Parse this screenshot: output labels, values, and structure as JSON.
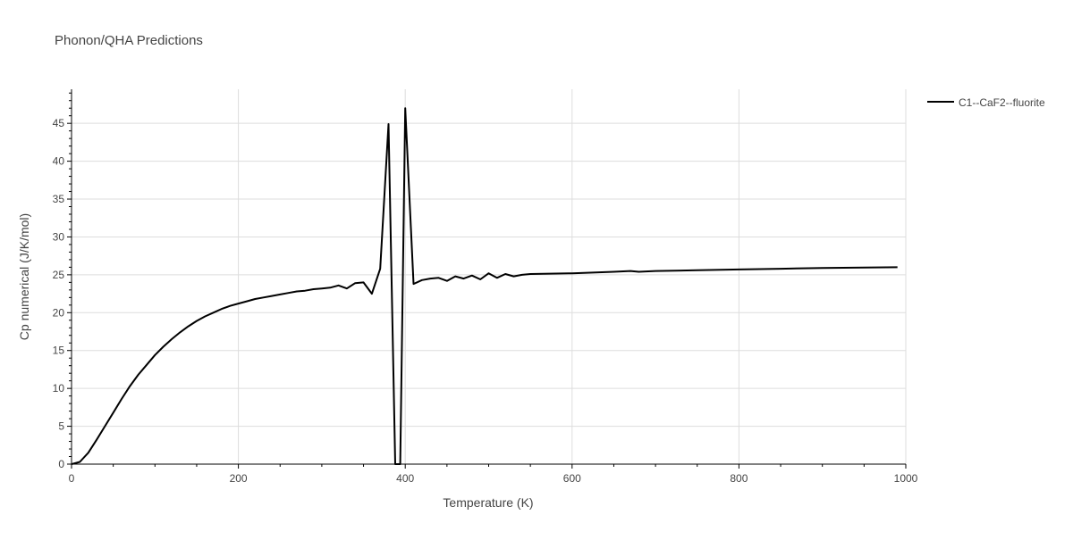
{
  "chart_data": {
    "type": "line",
    "title": "Phonon/QHA Predictions",
    "xlabel": "Temperature (K)",
    "ylabel": "Cp numerical (J/K/mol)",
    "xlim": [
      0,
      1000
    ],
    "ylim": [
      0,
      49.5
    ],
    "x_ticks": [
      0,
      200,
      400,
      600,
      800,
      1000
    ],
    "y_ticks": [
      0,
      5,
      10,
      15,
      20,
      25,
      30,
      35,
      40,
      45
    ],
    "grid": true,
    "legend_position": "top-right",
    "series": [
      {
        "name": "C1--CaF2--fluorite",
        "color": "#000000",
        "x": [
          0,
          10,
          20,
          30,
          40,
          50,
          60,
          70,
          80,
          90,
          100,
          110,
          120,
          130,
          140,
          150,
          160,
          170,
          180,
          190,
          200,
          210,
          220,
          230,
          240,
          250,
          260,
          270,
          280,
          290,
          300,
          310,
          320,
          330,
          340,
          350,
          360,
          370,
          380,
          388,
          394,
          400,
          410,
          420,
          430,
          440,
          450,
          460,
          470,
          480,
          490,
          500,
          510,
          520,
          530,
          540,
          550,
          600,
          650,
          670,
          680,
          700,
          750,
          800,
          850,
          900,
          950,
          990
        ],
        "y": [
          0,
          0.3,
          1.5,
          3.2,
          5.0,
          6.8,
          8.6,
          10.3,
          11.8,
          13.1,
          14.4,
          15.5,
          16.5,
          17.4,
          18.2,
          18.9,
          19.5,
          20.0,
          20.5,
          20.9,
          21.2,
          21.5,
          21.8,
          22.0,
          22.2,
          22.4,
          22.6,
          22.8,
          22.9,
          23.1,
          23.2,
          23.3,
          23.6,
          23.2,
          23.9,
          24.0,
          22.5,
          25.8,
          44.9,
          0,
          0,
          47.0,
          23.8,
          24.3,
          24.5,
          24.6,
          24.2,
          24.8,
          24.5,
          24.9,
          24.4,
          25.2,
          24.6,
          25.1,
          24.8,
          25.0,
          25.1,
          25.2,
          25.4,
          25.5,
          25.4,
          25.5,
          25.6,
          25.7,
          25.8,
          25.9,
          25.95,
          26.0
        ]
      }
    ]
  }
}
